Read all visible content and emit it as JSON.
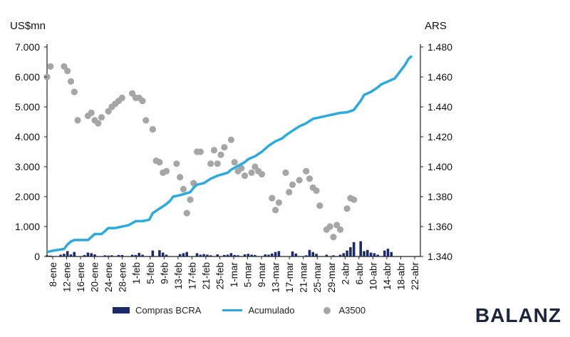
{
  "chart_data": {
    "type": "bar+line+scatter",
    "left_axis_label": "US$mn",
    "right_axis_label": "ARS",
    "left_ylim": [
      0,
      7000
    ],
    "left_ticks": [
      "0",
      "1.000",
      "2.000",
      "3.000",
      "4.000",
      "5.000",
      "6.000",
      "7.000"
    ],
    "right_ylim": [
      1340,
      1480
    ],
    "right_ticks": [
      "1.340",
      "1.360",
      "1.380",
      "1.400",
      "1.420",
      "1.440",
      "1.460",
      "1.480"
    ],
    "x_tick_labels": [
      "8-ene",
      "12-ene",
      "16-ene",
      "20-ene",
      "24-ene",
      "28-ene",
      "1-feb",
      "5-feb",
      "9-feb",
      "13-feb",
      "17-feb",
      "21-feb",
      "25-feb",
      "1-mar",
      "5-mar",
      "9-mar",
      "13-mar",
      "17-mar",
      "21-mar",
      "25-mar",
      "29-mar",
      "2-abr",
      "6-abr",
      "10-abr",
      "14-abr",
      "18-abr",
      "22-abr"
    ],
    "day_count": 108,
    "series": [
      {
        "name": "Compras BCRA",
        "type": "bar",
        "axis": "left",
        "color": "#1a2a6b",
        "points": [
          [
            0,
            40
          ],
          [
            1,
            30
          ],
          [
            4,
            60
          ],
          [
            5,
            90
          ],
          [
            6,
            180
          ],
          [
            7,
            70
          ],
          [
            8,
            150
          ],
          [
            11,
            50
          ],
          [
            12,
            130
          ],
          [
            13,
            110
          ],
          [
            14,
            70
          ],
          [
            17,
            40
          ],
          [
            18,
            30
          ],
          [
            19,
            40
          ],
          [
            21,
            50
          ],
          [
            22,
            50
          ],
          [
            25,
            60
          ],
          [
            26,
            50
          ],
          [
            27,
            120
          ],
          [
            28,
            60
          ],
          [
            31,
            200
          ],
          [
            33,
            210
          ],
          [
            34,
            130
          ],
          [
            35,
            60
          ],
          [
            39,
            80
          ],
          [
            40,
            110
          ],
          [
            41,
            150
          ],
          [
            44,
            110
          ],
          [
            45,
            60
          ],
          [
            46,
            80
          ],
          [
            47,
            60
          ],
          [
            48,
            40
          ],
          [
            50,
            70
          ],
          [
            52,
            50
          ],
          [
            53,
            60
          ],
          [
            54,
            110
          ],
          [
            55,
            50
          ],
          [
            56,
            40
          ],
          [
            58,
            70
          ],
          [
            59,
            90
          ],
          [
            60,
            60
          ],
          [
            61,
            50
          ],
          [
            64,
            70
          ],
          [
            65,
            60
          ],
          [
            66,
            100
          ],
          [
            67,
            150
          ],
          [
            68,
            180
          ],
          [
            72,
            170
          ],
          [
            73,
            100
          ],
          [
            76,
            40
          ],
          [
            77,
            220
          ],
          [
            78,
            150
          ],
          [
            79,
            90
          ],
          [
            82,
            60
          ],
          [
            84,
            40
          ],
          [
            86,
            60
          ],
          [
            87,
            110
          ],
          [
            88,
            200
          ],
          [
            89,
            310
          ],
          [
            90,
            480
          ],
          [
            92,
            510
          ],
          [
            93,
            180
          ],
          [
            94,
            220
          ],
          [
            95,
            130
          ],
          [
            96,
            110
          ],
          [
            97,
            60
          ],
          [
            99,
            200
          ],
          [
            100,
            260
          ],
          [
            101,
            150
          ]
        ]
      },
      {
        "name": "Acumulado",
        "type": "line",
        "axis": "left",
        "color": "#29abe2",
        "points": [
          [
            0,
            150
          ],
          [
            2,
            200
          ],
          [
            5,
            250
          ],
          [
            6,
            400
          ],
          [
            7,
            500
          ],
          [
            8,
            550
          ],
          [
            12,
            550
          ],
          [
            14,
            750
          ],
          [
            16,
            750
          ],
          [
            18,
            950
          ],
          [
            20,
            950
          ],
          [
            24,
            1050
          ],
          [
            26,
            1180
          ],
          [
            28,
            1180
          ],
          [
            30,
            1230
          ],
          [
            31,
            1450
          ],
          [
            33,
            1600
          ],
          [
            35,
            1750
          ],
          [
            36,
            1850
          ],
          [
            37,
            2000
          ],
          [
            39,
            2050
          ],
          [
            42,
            2150
          ],
          [
            43,
            2300
          ],
          [
            44,
            2400
          ],
          [
            46,
            2450
          ],
          [
            48,
            2600
          ],
          [
            50,
            2700
          ],
          [
            53,
            2800
          ],
          [
            54,
            2900
          ],
          [
            58,
            3150
          ],
          [
            59,
            3250
          ],
          [
            61,
            3350
          ],
          [
            63,
            3500
          ],
          [
            65,
            3700
          ],
          [
            67,
            3850
          ],
          [
            69,
            3950
          ],
          [
            70,
            4050
          ],
          [
            72,
            4200
          ],
          [
            74,
            4350
          ],
          [
            76,
            4450
          ],
          [
            78,
            4600
          ],
          [
            80,
            4650
          ],
          [
            82,
            4700
          ],
          [
            84,
            4750
          ],
          [
            86,
            4800
          ],
          [
            88,
            4820
          ],
          [
            90,
            4900
          ],
          [
            91,
            5050
          ],
          [
            92,
            5200
          ],
          [
            93,
            5400
          ],
          [
            95,
            5500
          ],
          [
            97,
            5650
          ],
          [
            98,
            5750
          ],
          [
            100,
            5850
          ],
          [
            102,
            5950
          ],
          [
            103,
            6100
          ],
          [
            104,
            6250
          ],
          [
            105,
            6400
          ],
          [
            106,
            6600
          ],
          [
            107,
            6700
          ]
        ]
      },
      {
        "name": "A3500",
        "type": "scatter",
        "axis": "right",
        "color": "#a6a6a6",
        "points": [
          [
            0,
            1460
          ],
          [
            1,
            1467
          ],
          [
            5,
            1467
          ],
          [
            6,
            1464
          ],
          [
            7,
            1457
          ],
          [
            8,
            1450
          ],
          [
            9,
            1431
          ],
          [
            12,
            1434
          ],
          [
            13,
            1436
          ],
          [
            14,
            1431
          ],
          [
            15,
            1429
          ],
          [
            16,
            1433
          ],
          [
            18,
            1437
          ],
          [
            19,
            1440
          ],
          [
            20,
            1442
          ],
          [
            21,
            1444
          ],
          [
            22,
            1446
          ],
          [
            25,
            1449
          ],
          [
            26,
            1446
          ],
          [
            27,
            1446
          ],
          [
            28,
            1444
          ],
          [
            29,
            1431
          ],
          [
            31,
            1425
          ],
          [
            32,
            1404
          ],
          [
            33,
            1403
          ],
          [
            34,
            1396
          ],
          [
            35,
            1397
          ],
          [
            38,
            1402
          ],
          [
            39,
            1393
          ],
          [
            40,
            1385
          ],
          [
            41,
            1369
          ],
          [
            42,
            1378
          ],
          [
            43,
            1389
          ],
          [
            44,
            1410
          ],
          [
            45,
            1410
          ],
          [
            48,
            1402
          ],
          [
            49,
            1411
          ],
          [
            50,
            1402
          ],
          [
            51,
            1408
          ],
          [
            52,
            1413
          ],
          [
            54,
            1418
          ],
          [
            55,
            1403
          ],
          [
            56,
            1397
          ],
          [
            57,
            1399
          ],
          [
            58,
            1394
          ],
          [
            60,
            1396
          ],
          [
            61,
            1400
          ],
          [
            62,
            1397
          ],
          [
            63,
            1395
          ],
          [
            66,
            1379
          ],
          [
            67,
            1371
          ],
          [
            68,
            1376
          ],
          [
            70,
            1396
          ],
          [
            71,
            1383
          ],
          [
            72,
            1388
          ],
          [
            74,
            1391
          ],
          [
            76,
            1397
          ],
          [
            77,
            1392
          ],
          [
            78,
            1386
          ],
          [
            79,
            1384
          ],
          [
            80,
            1374
          ],
          [
            82,
            1358
          ],
          [
            83,
            1360
          ],
          [
            84,
            1353
          ],
          [
            85,
            1361
          ],
          [
            86,
            1358
          ],
          [
            88,
            1372
          ],
          [
            89,
            1379
          ],
          [
            90,
            1378
          ]
        ]
      }
    ],
    "legend": [
      "Compras BCRA",
      "Acumulado",
      "A3500"
    ],
    "legend_position": "bottom"
  },
  "brand": "BALANZ"
}
